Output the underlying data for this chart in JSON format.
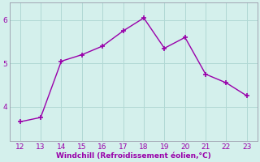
{
  "x": [
    12,
    13,
    14,
    15,
    16,
    17,
    18,
    19,
    20,
    21,
    22,
    23
  ],
  "y": [
    3.65,
    3.75,
    5.05,
    5.2,
    5.4,
    5.75,
    6.05,
    5.35,
    5.6,
    4.75,
    4.55,
    4.25
  ],
  "line_color": "#9900aa",
  "marker": "+",
  "marker_size": 4,
  "marker_linewidth": 1.2,
  "bg_color": "#d4f0ec",
  "grid_color": "#b0d8d4",
  "xlabel": "Windchill (Refroidissement éolien,°C)",
  "xlabel_color": "#9900aa",
  "xlabel_fontsize": 6.5,
  "tick_color": "#9900aa",
  "tick_fontsize": 6.5,
  "ylim": [
    3.2,
    6.4
  ],
  "yticks": [
    4,
    5,
    6
  ],
  "xlim": [
    11.5,
    23.5
  ],
  "xticks": [
    12,
    13,
    14,
    15,
    16,
    17,
    18,
    19,
    20,
    21,
    22,
    23
  ],
  "spine_color": "#9999aa",
  "linewidth": 1.0
}
